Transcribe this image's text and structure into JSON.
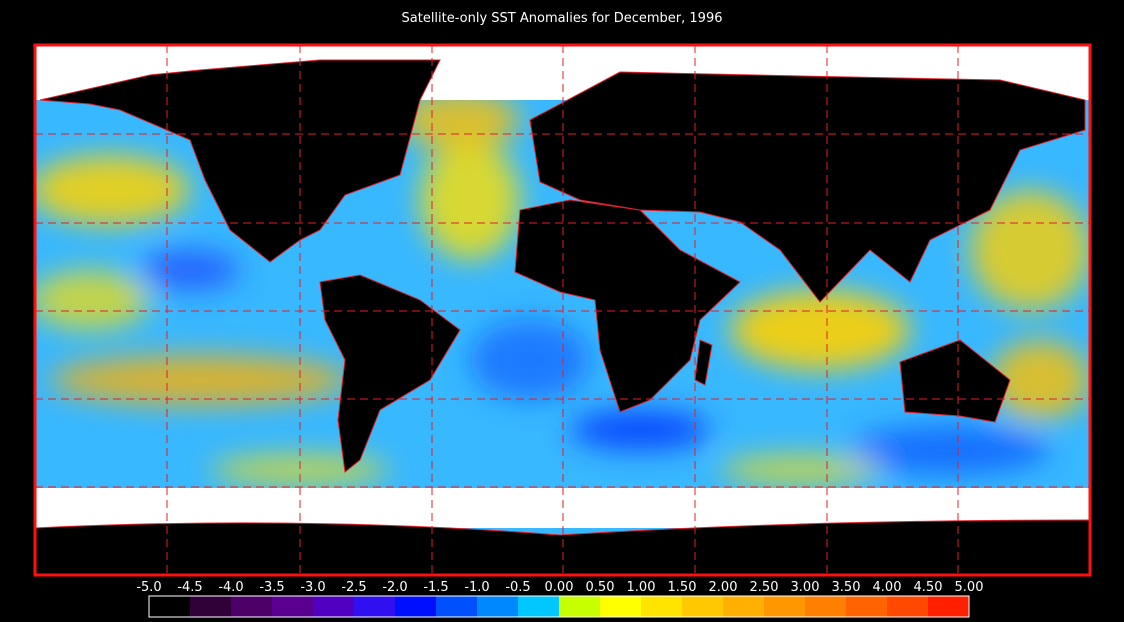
{
  "header": {
    "title": "Satellite-only SST Anomalies for December, 1996"
  },
  "colorbar": {
    "labels": [
      "-5.0",
      "-4.5",
      "-4.0",
      "-3.5",
      "-3.0",
      "-2.5",
      "-2.0",
      "-1.5",
      "-1.0",
      "-0.5",
      "0.00",
      "0.50",
      "1.00",
      "1.50",
      "2.00",
      "2.50",
      "3.00",
      "3.50",
      "4.00",
      "4.50",
      "5.00"
    ],
    "colors": [
      "#000000",
      "#300038",
      "#4c0068",
      "#5a0090",
      "#5000c0",
      "#3010f0",
      "#0010ff",
      "#0050ff",
      "#0088ff",
      "#00c8ff",
      "#c8ff00",
      "#ffff00",
      "#ffe400",
      "#ffc800",
      "#ffb000",
      "#ff9800",
      "#ff8000",
      "#ff6400",
      "#ff4800",
      "#ff2000"
    ]
  }
}
